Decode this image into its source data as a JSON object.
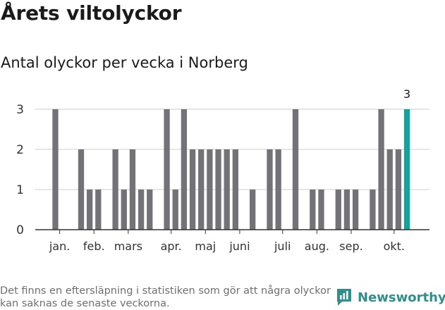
{
  "header": {
    "title": "Årets viltolyckor",
    "subtitle": "Antal olyckor per vecka i Norberg"
  },
  "footer": {
    "note": "Det finns en eftersläpning i statistiken som gör att några olyckor kan saknas de senaste veckorna.",
    "brand": "Newsworthy"
  },
  "colors": {
    "bar": "#737276",
    "highlight": "#14a39b",
    "grid": "#dddddd",
    "axis": "#333333",
    "brand": "#2f8f8a"
  },
  "chart_data": {
    "type": "bar",
    "title": "Antal olyckor per vecka i Norberg",
    "xlabel": "",
    "ylabel": "",
    "ylim": [
      0,
      3
    ],
    "yticks": [
      0,
      1,
      2,
      3
    ],
    "weeks": [
      1,
      2,
      3,
      4,
      5,
      6,
      7,
      8,
      9,
      10,
      11,
      12,
      13,
      14,
      15,
      16,
      17,
      18,
      19,
      20,
      21,
      22,
      23,
      24,
      25,
      26,
      27,
      28,
      29,
      30,
      31,
      32,
      33,
      34,
      35,
      36,
      37,
      38,
      39,
      40,
      41,
      42
    ],
    "values": [
      3,
      0,
      0,
      2,
      1,
      1,
      0,
      2,
      1,
      2,
      1,
      1,
      0,
      3,
      1,
      3,
      2,
      2,
      2,
      2,
      2,
      2,
      0,
      1,
      0,
      2,
      2,
      0,
      3,
      0,
      1,
      1,
      0,
      1,
      1,
      1,
      0,
      1,
      3,
      2,
      2,
      3
    ],
    "month_labels": [
      {
        "label": "jan.",
        "week": 1.5
      },
      {
        "label": "feb.",
        "week": 5.5
      },
      {
        "label": "mars",
        "week": 9.5
      },
      {
        "label": "apr.",
        "week": 14.5
      },
      {
        "label": "maj",
        "week": 18.5
      },
      {
        "label": "juni",
        "week": 22.5
      },
      {
        "label": "juli",
        "week": 27.5
      },
      {
        "label": "aug.",
        "week": 31.5
      },
      {
        "label": "sep.",
        "week": 35.5
      },
      {
        "label": "okt.",
        "week": 40.5
      }
    ],
    "highlight_week": 42,
    "highlight_label": "3"
  }
}
